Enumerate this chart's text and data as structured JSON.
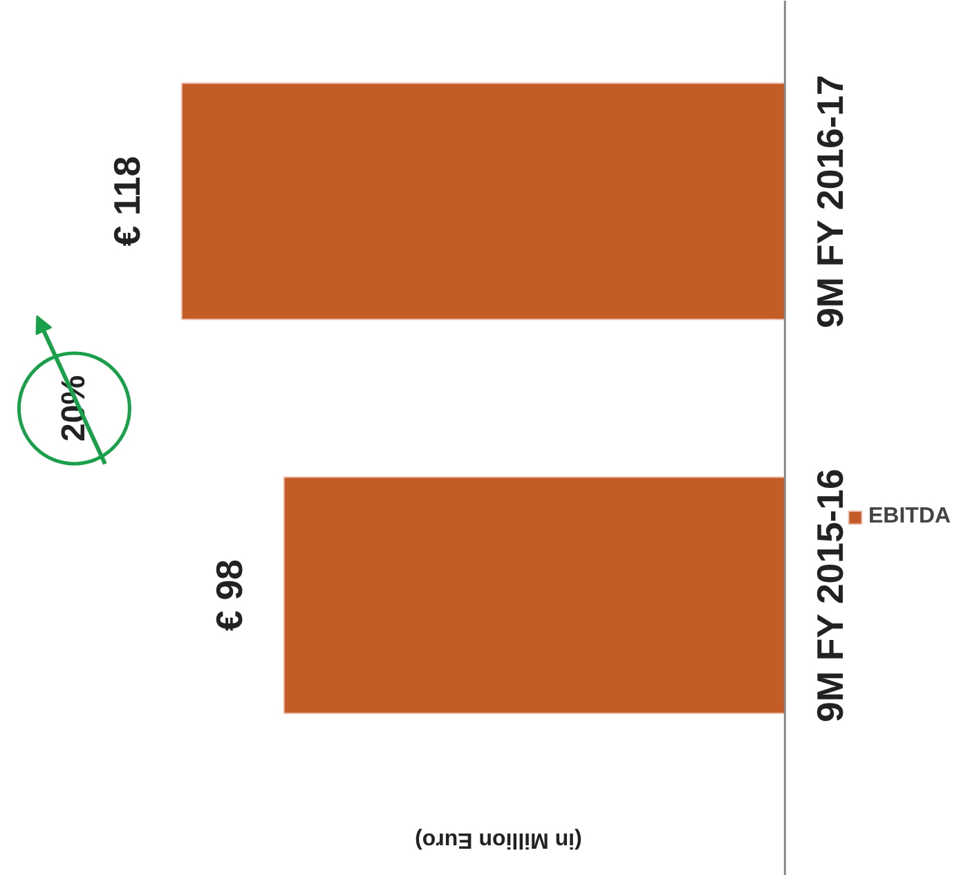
{
  "chart_data": {
    "type": "bar",
    "orientation": "horizontal",
    "categories": [
      "9M FY 2016-17",
      "9M FY 2015-16"
    ],
    "series": [
      {
        "name": "EBITDA",
        "color": "#c45c28",
        "values": [
          118,
          98
        ],
        "value_labels": [
          "€ 118",
          "€ 98"
        ]
      }
    ],
    "xlabel": "(in Million Euro)",
    "annotations": [
      "20%"
    ],
    "legend": "right",
    "grid": false
  }
}
